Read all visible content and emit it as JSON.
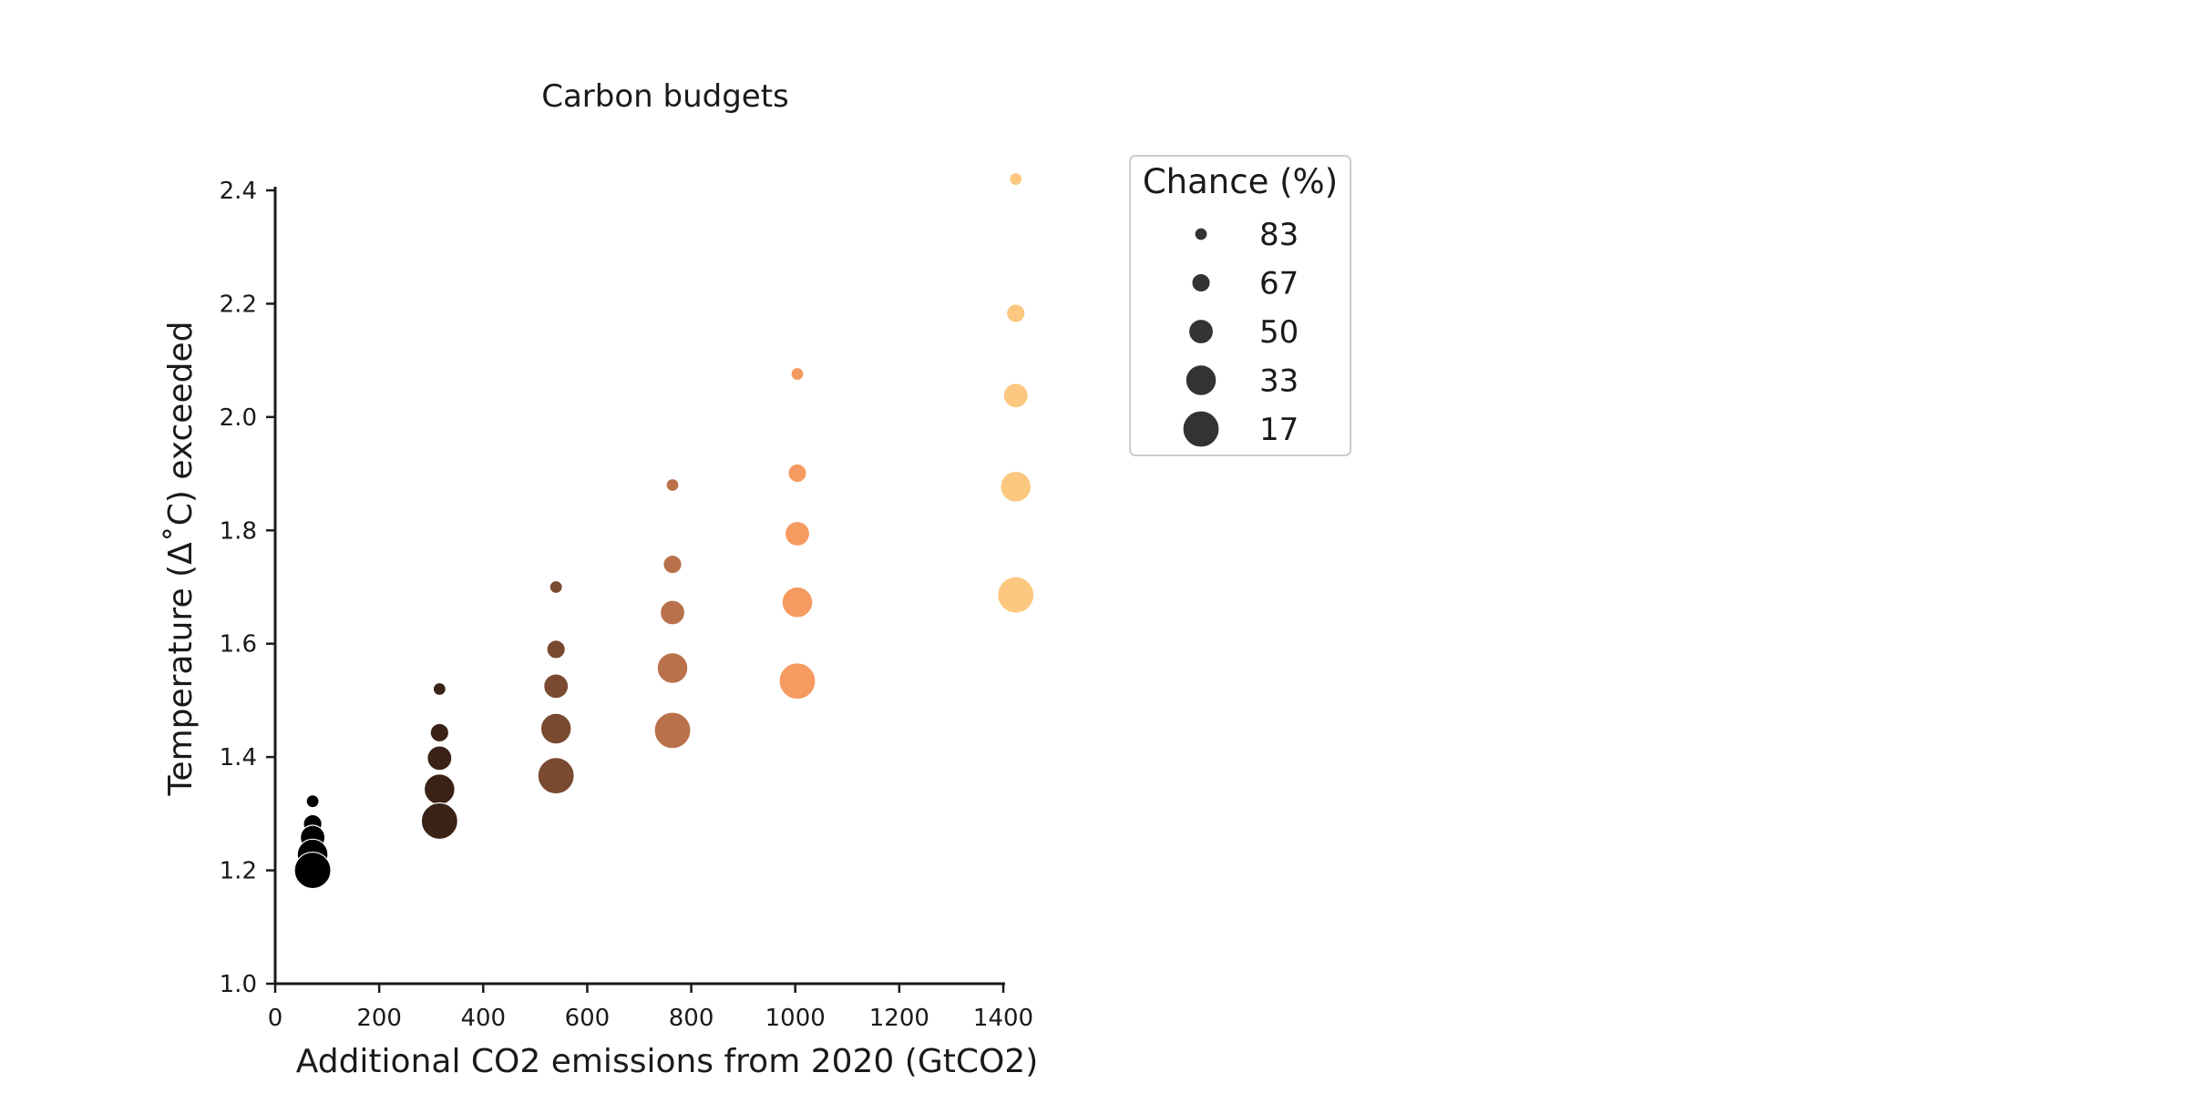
{
  "chart_data": {
    "type": "scatter",
    "title": "Carbon budgets",
    "xlabel": "Additional CO2 emissions from 2020 (GtCO2)",
    "ylabel": "Temperature (Δ˚C) exceeded",
    "xlim": [
      0,
      1400
    ],
    "ylim": [
      1.0,
      2.4
    ],
    "xticks": [
      0,
      200,
      400,
      600,
      800,
      1000,
      1200,
      1400
    ],
    "yticks": [
      "1.0",
      "1.2",
      "1.4",
      "1.6",
      "1.8",
      "2.0",
      "2.2",
      "2.4"
    ],
    "grid": false,
    "legend": {
      "title": "Chance (%)",
      "placement": "upper-right-outside",
      "entries": [
        "83",
        "67",
        "50",
        "33",
        "17"
      ]
    },
    "size_encodes": "chance",
    "color_encodes": "emissions",
    "colormap": [
      "#000000",
      "#3a2216",
      "#7a4a30",
      "#b8714a",
      "#f59a60",
      "#fcc880"
    ],
    "legend_marker_color": "#333333",
    "points": [
      {
        "x": 72,
        "y": 1.322,
        "chance": 83
      },
      {
        "x": 72,
        "y": 1.282,
        "chance": 67
      },
      {
        "x": 72,
        "y": 1.258,
        "chance": 50
      },
      {
        "x": 72,
        "y": 1.228,
        "chance": 33
      },
      {
        "x": 72,
        "y": 1.2,
        "chance": 17
      },
      {
        "x": 316,
        "y": 1.52,
        "chance": 83
      },
      {
        "x": 316,
        "y": 1.443,
        "chance": 67
      },
      {
        "x": 316,
        "y": 1.398,
        "chance": 50
      },
      {
        "x": 316,
        "y": 1.343,
        "chance": 33
      },
      {
        "x": 316,
        "y": 1.287,
        "chance": 17
      },
      {
        "x": 540,
        "y": 1.7,
        "chance": 83
      },
      {
        "x": 540,
        "y": 1.59,
        "chance": 67
      },
      {
        "x": 540,
        "y": 1.525,
        "chance": 50
      },
      {
        "x": 540,
        "y": 1.45,
        "chance": 33
      },
      {
        "x": 540,
        "y": 1.367,
        "chance": 17
      },
      {
        "x": 764,
        "y": 1.88,
        "chance": 83
      },
      {
        "x": 764,
        "y": 1.74,
        "chance": 67
      },
      {
        "x": 764,
        "y": 1.655,
        "chance": 50
      },
      {
        "x": 764,
        "y": 1.557,
        "chance": 33
      },
      {
        "x": 764,
        "y": 1.447,
        "chance": 17
      },
      {
        "x": 1004,
        "y": 2.076,
        "chance": 83
      },
      {
        "x": 1004,
        "y": 1.901,
        "chance": 67
      },
      {
        "x": 1004,
        "y": 1.794,
        "chance": 50
      },
      {
        "x": 1004,
        "y": 1.673,
        "chance": 33
      },
      {
        "x": 1004,
        "y": 1.534,
        "chance": 17
      },
      {
        "x": 1424,
        "y": 2.42,
        "chance": 83
      },
      {
        "x": 1424,
        "y": 2.183,
        "chance": 67
      },
      {
        "x": 1424,
        "y": 2.038,
        "chance": 50
      },
      {
        "x": 1424,
        "y": 1.877,
        "chance": 33
      },
      {
        "x": 1424,
        "y": 1.686,
        "chance": 17
      }
    ]
  }
}
